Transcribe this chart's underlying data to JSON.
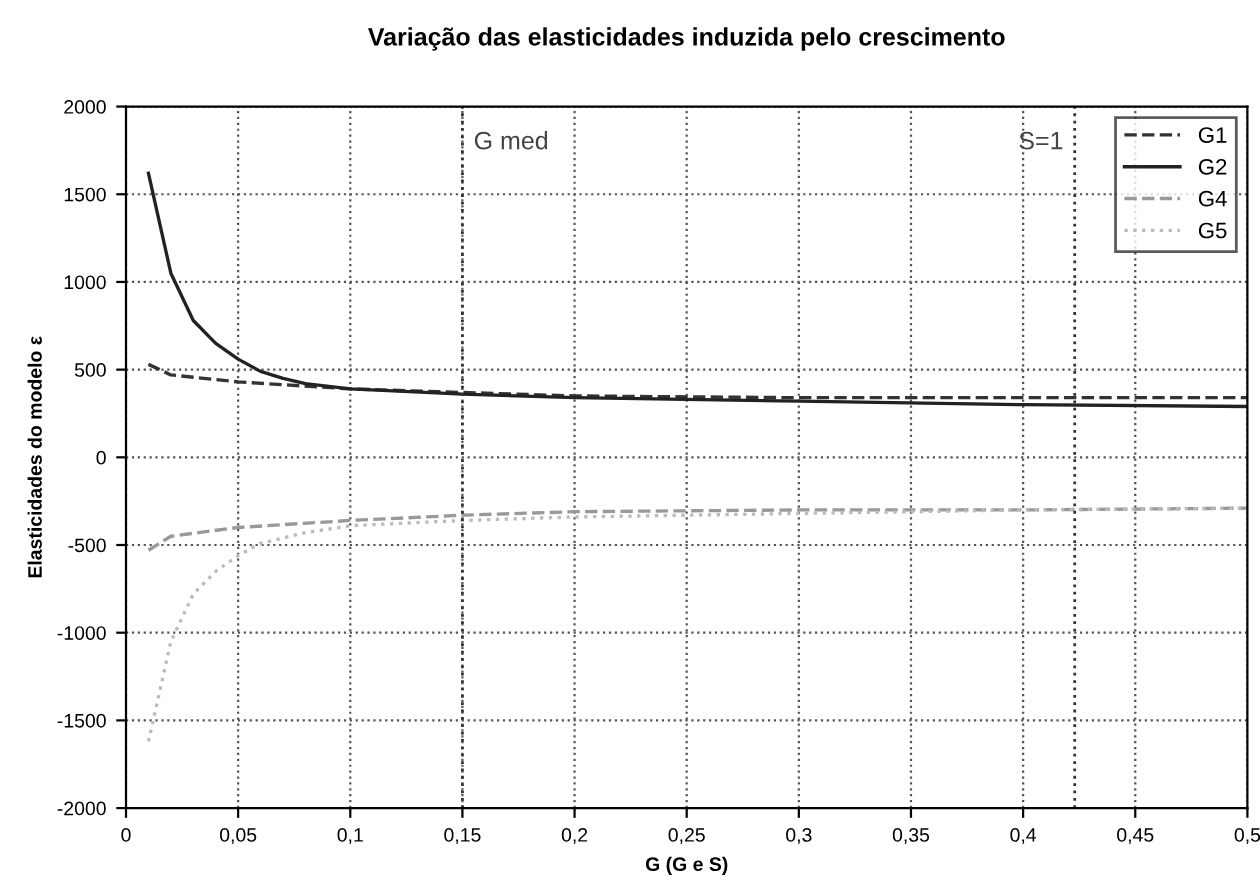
{
  "chart_data": {
    "type": "line",
    "title": "Variação das elasticidades induzida pelo crescimento",
    "xlabel": "G (G e S)",
    "ylabel": "Elasticidades do modelo ε",
    "xlim": [
      0,
      0.5
    ],
    "xticks": [
      {
        "value": 0,
        "label": "0"
      },
      {
        "value": 0.05,
        "label": "0,05"
      },
      {
        "value": 0.1,
        "label": "0,1"
      },
      {
        "value": 0.15,
        "label": "0,15"
      },
      {
        "value": 0.2,
        "label": "0,2"
      },
      {
        "value": 0.25,
        "label": "0,25"
      },
      {
        "value": 0.3,
        "label": "0,3"
      },
      {
        "value": 0.35,
        "label": "0,35"
      },
      {
        "value": 0.4,
        "label": "0,4"
      },
      {
        "value": 0.45,
        "label": "0,45"
      },
      {
        "value": 0.5,
        "label": "0,5"
      }
    ],
    "ylim": [
      -2000,
      2000
    ],
    "yticks": [
      -2000,
      -1500,
      -1000,
      -500,
      0,
      500,
      1000,
      1500,
      2000
    ],
    "grid": true,
    "legend": "top right",
    "marker": "none",
    "ref_lines": [
      {
        "axis": "x",
        "value": 0.15,
        "label": "G med",
        "line_style": "dotted",
        "color": "#333333"
      },
      {
        "axis": "x",
        "value": 0.423,
        "line_style": "dotted",
        "color": "#333333"
      }
    ],
    "annotations": [
      "S=1"
    ],
    "series": [
      {
        "name": "G1",
        "color": "#333333",
        "line_style": "dashed",
        "x": [
          0.01,
          0.02,
          0.05,
          0.1,
          0.15,
          0.2,
          0.3,
          0.4,
          0.5
        ],
        "values": [
          530,
          470,
          430,
          390,
          370,
          350,
          340,
          340,
          340
        ]
      },
      {
        "name": "G2",
        "color": "#222222",
        "line_style": "solid",
        "x": [
          0.01,
          0.02,
          0.03,
          0.04,
          0.05,
          0.06,
          0.07,
          0.08,
          0.1,
          0.15,
          0.2,
          0.3,
          0.4,
          0.5
        ],
        "values": [
          1620,
          1050,
          780,
          650,
          560,
          490,
          450,
          420,
          390,
          360,
          340,
          320,
          300,
          290
        ]
      },
      {
        "name": "G4",
        "color": "#999999",
        "line_style": "dashed",
        "x": [
          0.01,
          0.02,
          0.05,
          0.1,
          0.15,
          0.2,
          0.3,
          0.4,
          0.5
        ],
        "values": [
          -530,
          -450,
          -400,
          -360,
          -330,
          -310,
          -300,
          -300,
          -290
        ]
      },
      {
        "name": "G5",
        "color": "#bbbbbb",
        "line_style": "dotted",
        "x": [
          0.01,
          0.02,
          0.03,
          0.04,
          0.05,
          0.06,
          0.08,
          0.1,
          0.15,
          0.2,
          0.3,
          0.4,
          0.5
        ],
        "values": [
          -1620,
          -1050,
          -780,
          -650,
          -560,
          -490,
          -430,
          -390,
          -360,
          -340,
          -320,
          -300,
          -290
        ]
      }
    ]
  }
}
